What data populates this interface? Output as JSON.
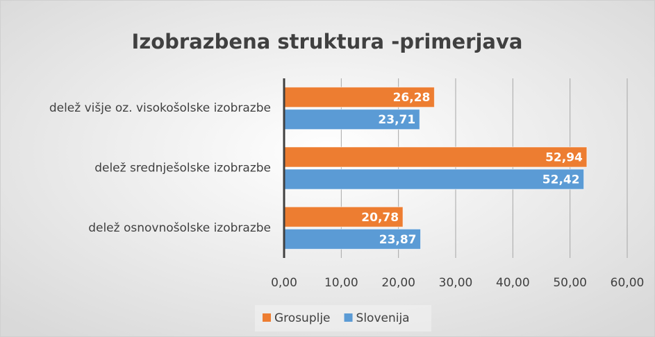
{
  "chart_data": {
    "type": "hbar",
    "title": "Izobrazbena struktura -primerjava",
    "categories": [
      "delež višje oz. visokošolske izobrazbe",
      "delež srednješolske izobrazbe",
      "delež osnovnošolske izobrazbe"
    ],
    "series": [
      {
        "name": "Grosuplje",
        "color": "#ED7D31",
        "values": [
          26.28,
          52.94,
          20.78
        ],
        "value_labels": [
          "26,28",
          "52,94",
          "20,78"
        ]
      },
      {
        "name": "Slovenija",
        "color": "#5B9BD5",
        "values": [
          23.71,
          52.42,
          23.87
        ],
        "value_labels": [
          "23,71",
          "52,42",
          "23,87"
        ]
      }
    ],
    "xlim": [
      0,
      60
    ],
    "xticks": [
      {
        "value": 0,
        "label": "0,00"
      },
      {
        "value": 10,
        "label": "10,00"
      },
      {
        "value": 20,
        "label": "20,00"
      },
      {
        "value": 30,
        "label": "30,00"
      },
      {
        "value": 40,
        "label": "40,00"
      },
      {
        "value": 50,
        "label": "50,00"
      },
      {
        "value": 60,
        "label": "60,00"
      }
    ],
    "grid": true,
    "legend": "bottom"
  }
}
